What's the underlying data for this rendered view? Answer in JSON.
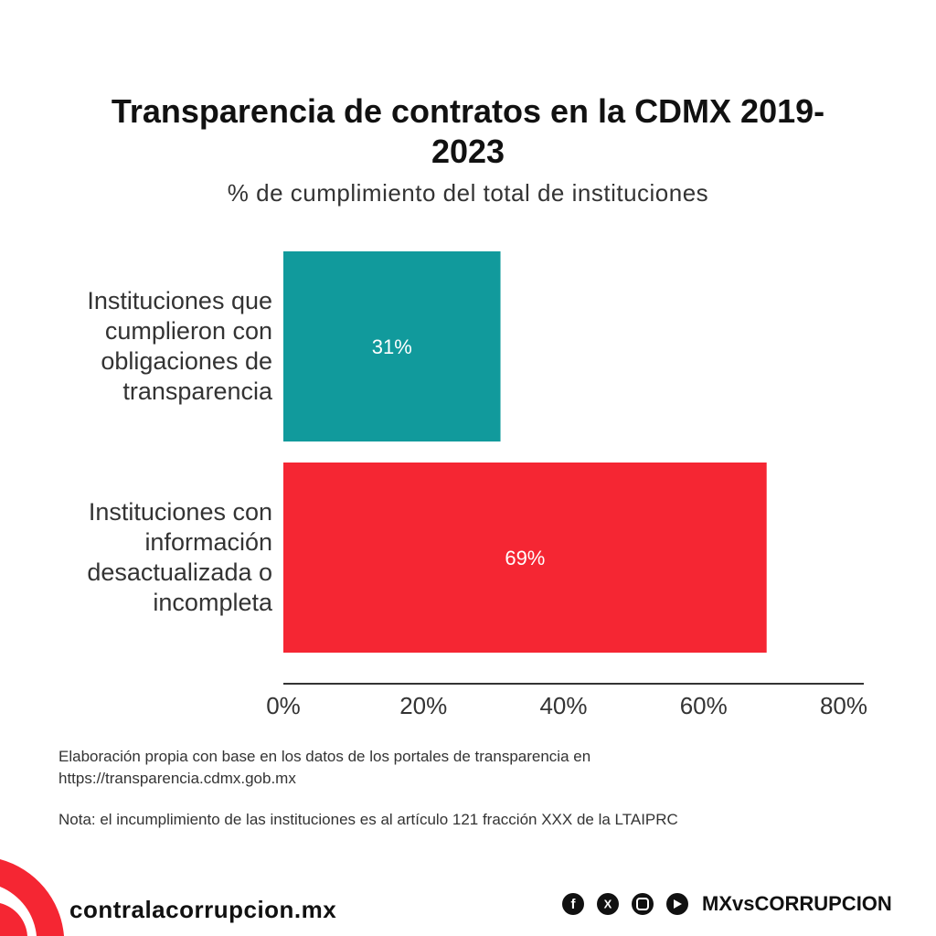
{
  "chart_data": {
    "type": "barh",
    "title": "Transparencia de contratos en la CDMX 2019-2023",
    "subtitle": "% de cumplimiento del total de instituciones",
    "categories": [
      "Instituciones que cumplieron con obligaciones de transparencia",
      "Instituciones con información desactualizada o incompleta"
    ],
    "values": [
      31,
      69
    ],
    "value_labels": [
      "31%",
      "69%"
    ],
    "colors": [
      "#119a9c",
      "#f52633"
    ],
    "xlim": [
      0,
      80
    ],
    "xticks": [
      {
        "value": 0,
        "label": "0%"
      },
      {
        "value": 20,
        "label": "20%"
      },
      {
        "value": 40,
        "label": "40%"
      },
      {
        "value": 60,
        "label": "60%"
      },
      {
        "value": 80,
        "label": "80%"
      }
    ],
    "grid": false
  },
  "footer": {
    "source": "Elaboración propia con base en los datos de los portales de transparencia en https://transparencia.cdmx.gob.mx",
    "note": "Nota: el incumplimiento de las instituciones es al artículo 121 fracción XXX de la LTAIPRC",
    "website": "contralacorrupcion.mx",
    "handle": "MXvsCORRUPCION"
  }
}
